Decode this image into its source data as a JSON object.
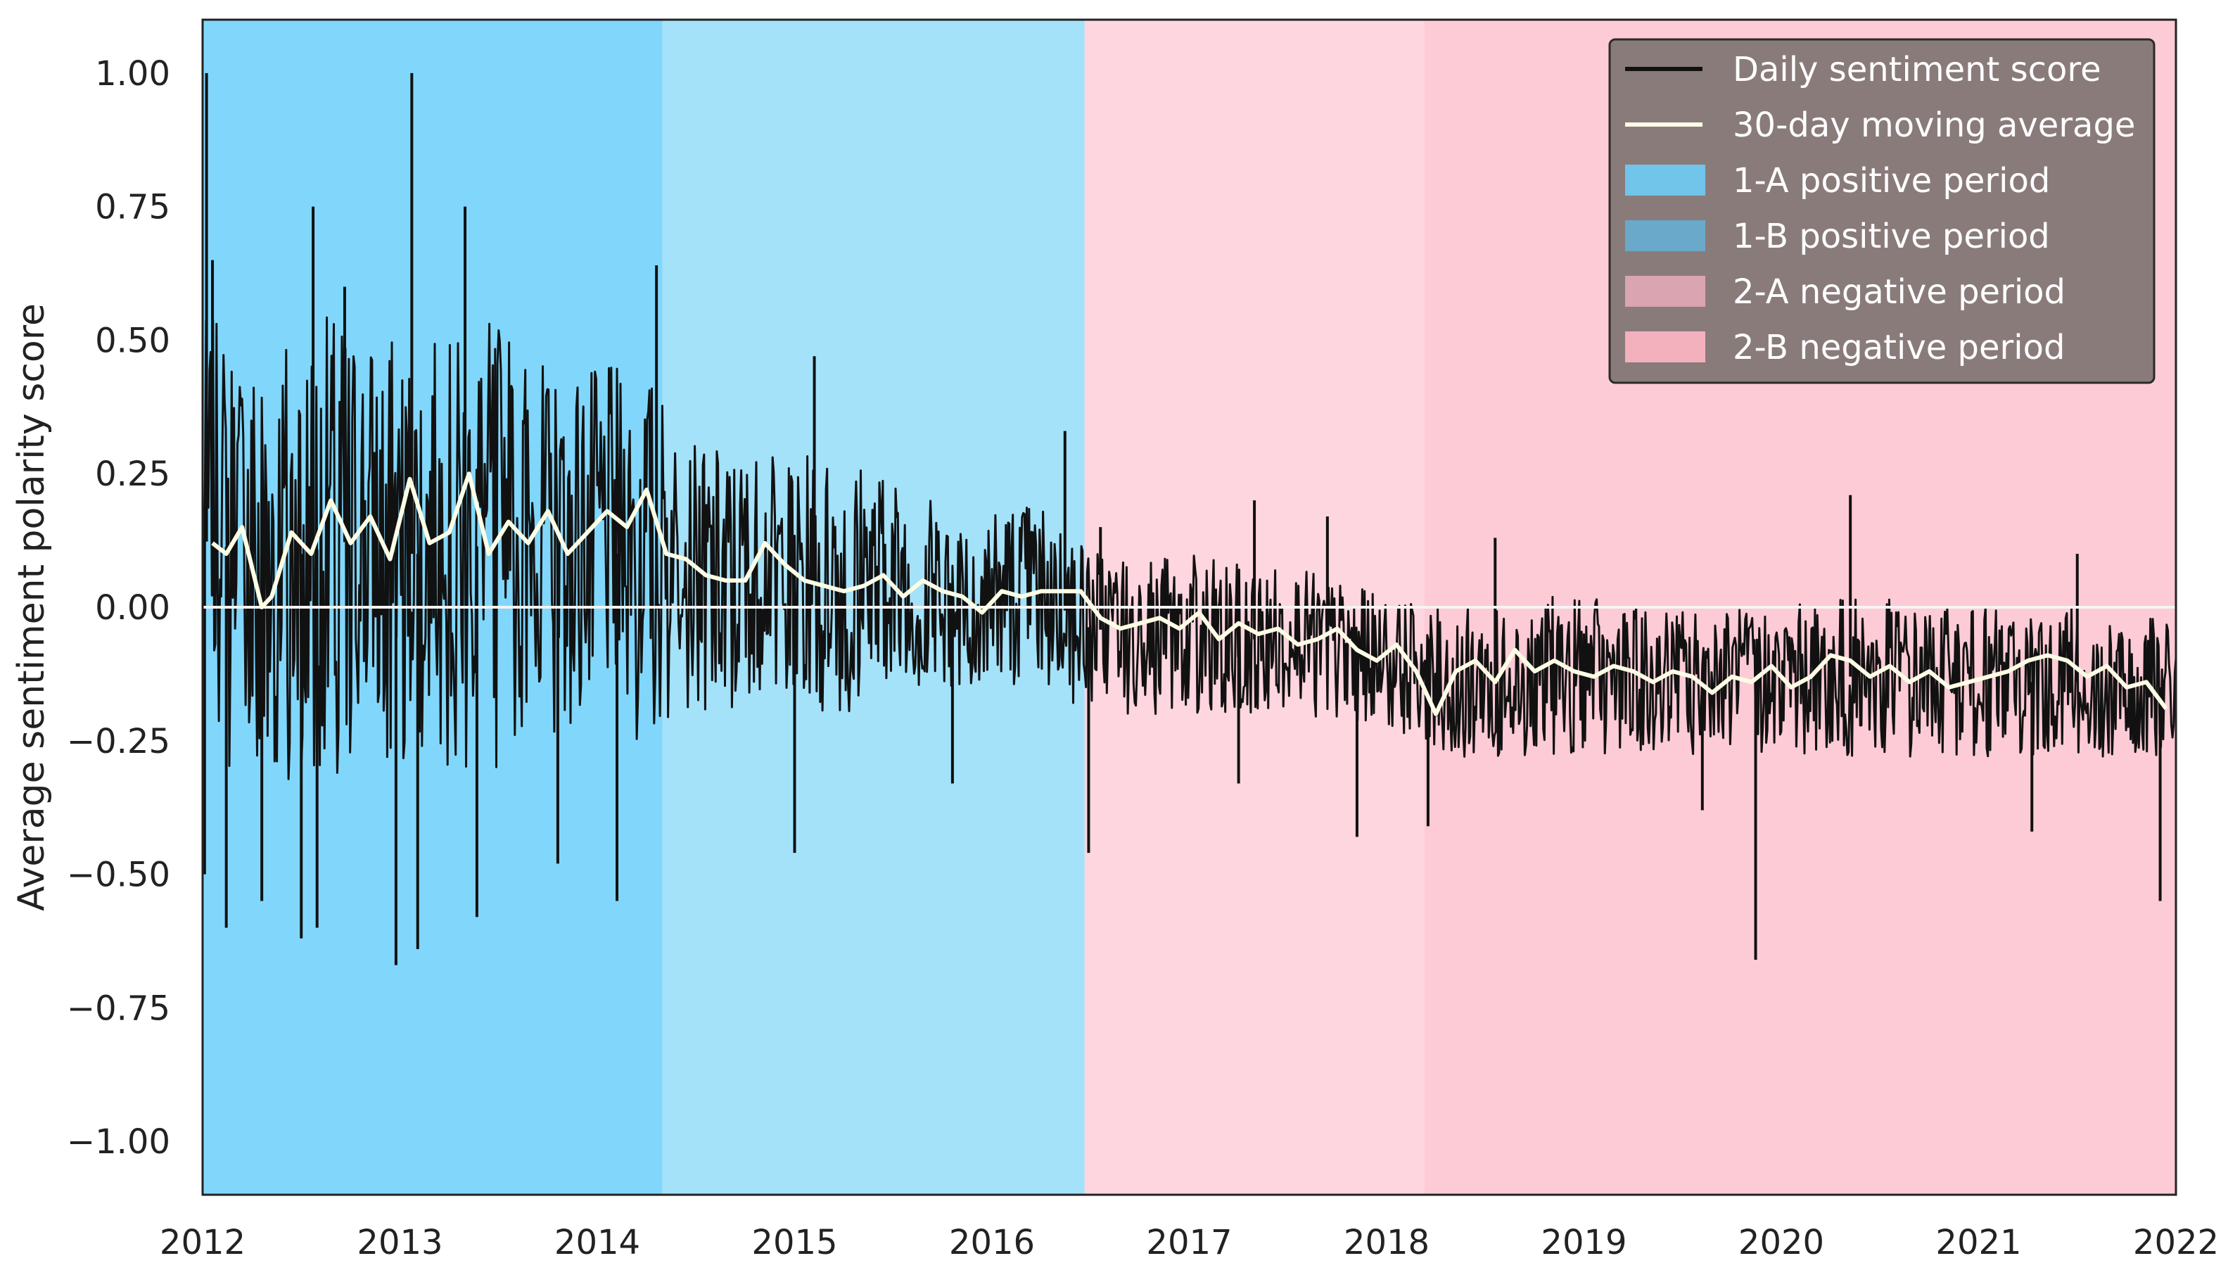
{
  "chart_data": {
    "type": "line",
    "title": "",
    "xlabel": "",
    "ylabel": "Average sentiment polarity score",
    "xlim": [
      2012.0,
      2022.0
    ],
    "ylim": [
      -1.1,
      1.1
    ],
    "x_ticks": [
      2012,
      2013,
      2014,
      2015,
      2016,
      2017,
      2018,
      2019,
      2020,
      2021,
      2022
    ],
    "x_tick_labels": [
      "2012",
      "2013",
      "2014",
      "2015",
      "2016",
      "2017",
      "2018",
      "2019",
      "2020",
      "2021",
      "2022"
    ],
    "y_ticks": [
      1.0,
      0.75,
      0.5,
      0.25,
      0.0,
      -0.25,
      -0.5,
      -0.75,
      -1.0
    ],
    "y_tick_labels": [
      "1.00",
      "0.75",
      "0.50",
      "0.25",
      "0.00",
      "−0.25",
      "−0.50",
      "−0.75",
      "−1.00"
    ],
    "grid": false,
    "zero_line": 0.0,
    "legend": {
      "placement": "top-right",
      "background": "#8a7b7b",
      "entries": [
        {
          "label": "Daily sentiment score",
          "kind": "line",
          "color": "#111111"
        },
        {
          "label": "30-day moving average",
          "kind": "line",
          "color": "#fdfde6"
        },
        {
          "label": "1-A positive period",
          "kind": "patch",
          "color": "#72c5ea"
        },
        {
          "label": "1-B positive period",
          "kind": "patch",
          "color": "#6aa9c9"
        },
        {
          "label": "2-A negative period",
          "kind": "patch",
          "color": "#dba4b1"
        },
        {
          "label": "2-B negative period",
          "kind": "patch",
          "color": "#f3b1bd"
        }
      ]
    },
    "periods": [
      {
        "start": 2012.0,
        "end": 2014.33,
        "color": "#81d7fb"
      },
      {
        "start": 2014.33,
        "end": 2016.47,
        "color": "#a4e2fa"
      },
      {
        "start": 2016.47,
        "end": 2018.19,
        "color": "#fdd6df"
      },
      {
        "start": 2018.19,
        "end": 2022.0,
        "color": "#fdcbd6"
      }
    ],
    "series": [
      {
        "name": "Daily sentiment score",
        "color": "#111111",
        "envelope": {
          "x": [
            2012.0,
            2012.25,
            2012.5,
            2012.75,
            2013.0,
            2013.25,
            2013.5,
            2013.75,
            2014.0,
            2014.25,
            2014.5,
            2014.75,
            2015.0,
            2015.25,
            2015.5,
            2015.75,
            2016.0,
            2016.25,
            2016.5,
            2016.75,
            2017.0,
            2017.25,
            2017.5,
            2017.75,
            2018.0,
            2018.25,
            2018.5,
            2018.75,
            2019.0,
            2019.25,
            2019.5,
            2019.75,
            2020.0,
            2020.25,
            2020.5,
            2020.75,
            2021.0,
            2021.25,
            2021.5,
            2021.75,
            2022.0
          ],
          "upper": [
            0.55,
            0.5,
            0.55,
            0.55,
            0.5,
            0.5,
            0.55,
            0.45,
            0.45,
            0.45,
            0.3,
            0.3,
            0.28,
            0.3,
            0.25,
            0.2,
            0.2,
            0.2,
            0.12,
            0.1,
            0.1,
            0.08,
            0.08,
            0.05,
            0.02,
            0.0,
            0.0,
            0.02,
            0.02,
            0.0,
            0.0,
            0.0,
            0.0,
            0.02,
            0.02,
            0.0,
            0.0,
            0.0,
            0.0,
            -0.02,
            -0.02
          ],
          "lower": [
            -0.3,
            -0.3,
            -0.35,
            -0.3,
            -0.3,
            -0.3,
            -0.3,
            -0.25,
            -0.25,
            -0.25,
            -0.2,
            -0.2,
            -0.2,
            -0.2,
            -0.15,
            -0.15,
            -0.15,
            -0.15,
            -0.2,
            -0.2,
            -0.2,
            -0.2,
            -0.2,
            -0.22,
            -0.22,
            -0.28,
            -0.28,
            -0.28,
            -0.28,
            -0.28,
            -0.28,
            -0.28,
            -0.28,
            -0.28,
            -0.28,
            -0.28,
            -0.28,
            -0.28,
            -0.28,
            -0.28,
            -0.28
          ]
        },
        "spikes": [
          {
            "x": 2012.02,
            "y": 1.0
          },
          {
            "x": 2012.01,
            "y": -0.5
          },
          {
            "x": 2012.05,
            "y": 0.65
          },
          {
            "x": 2012.12,
            "y": -0.6
          },
          {
            "x": 2012.3,
            "y": -0.55
          },
          {
            "x": 2012.5,
            "y": -0.62
          },
          {
            "x": 2012.56,
            "y": 0.75
          },
          {
            "x": 2012.58,
            "y": -0.6
          },
          {
            "x": 2012.72,
            "y": 0.6
          },
          {
            "x": 2012.98,
            "y": -0.67
          },
          {
            "x": 2013.06,
            "y": 1.0
          },
          {
            "x": 2013.09,
            "y": -0.64
          },
          {
            "x": 2013.33,
            "y": 0.75
          },
          {
            "x": 2013.39,
            "y": -0.58
          },
          {
            "x": 2013.8,
            "y": -0.48
          },
          {
            "x": 2014.1,
            "y": -0.55
          },
          {
            "x": 2014.3,
            "y": 0.64
          },
          {
            "x": 2015.0,
            "y": -0.46
          },
          {
            "x": 2015.1,
            "y": 0.47
          },
          {
            "x": 2015.8,
            "y": -0.33
          },
          {
            "x": 2016.37,
            "y": 0.33
          },
          {
            "x": 2016.49,
            "y": -0.46
          },
          {
            "x": 2016.55,
            "y": 0.15
          },
          {
            "x": 2017.25,
            "y": -0.33
          },
          {
            "x": 2017.33,
            "y": 0.2
          },
          {
            "x": 2017.7,
            "y": 0.17
          },
          {
            "x": 2017.85,
            "y": -0.43
          },
          {
            "x": 2018.21,
            "y": -0.41
          },
          {
            "x": 2018.55,
            "y": 0.13
          },
          {
            "x": 2019.6,
            "y": -0.38
          },
          {
            "x": 2019.87,
            "y": -0.66
          },
          {
            "x": 2020.35,
            "y": 0.21
          },
          {
            "x": 2021.27,
            "y": -0.42
          },
          {
            "x": 2021.5,
            "y": 0.1
          },
          {
            "x": 2021.92,
            "y": -0.55
          }
        ]
      },
      {
        "name": "30-day moving average",
        "color": "#fdfde6",
        "x": [
          2012.05,
          2012.12,
          2012.2,
          2012.3,
          2012.35,
          2012.45,
          2012.55,
          2012.65,
          2012.75,
          2012.85,
          2012.95,
          2013.05,
          2013.15,
          2013.25,
          2013.35,
          2013.45,
          2013.55,
          2013.65,
          2013.75,
          2013.85,
          2013.95,
          2014.05,
          2014.15,
          2014.25,
          2014.35,
          2014.45,
          2014.55,
          2014.65,
          2014.75,
          2014.85,
          2014.95,
          2015.05,
          2015.15,
          2015.25,
          2015.35,
          2015.45,
          2015.55,
          2015.65,
          2015.75,
          2015.85,
          2015.95,
          2016.05,
          2016.15,
          2016.25,
          2016.35,
          2016.45,
          2016.55,
          2016.65,
          2016.75,
          2016.85,
          2016.95,
          2017.05,
          2017.15,
          2017.25,
          2017.35,
          2017.45,
          2017.55,
          2017.65,
          2017.75,
          2017.85,
          2017.95,
          2018.05,
          2018.15,
          2018.25,
          2018.35,
          2018.45,
          2018.55,
          2018.65,
          2018.75,
          2018.85,
          2018.95,
          2019.05,
          2019.15,
          2019.25,
          2019.35,
          2019.45,
          2019.55,
          2019.65,
          2019.75,
          2019.85,
          2019.95,
          2020.05,
          2020.15,
          2020.25,
          2020.35,
          2020.45,
          2020.55,
          2020.65,
          2020.75,
          2020.85,
          2020.95,
          2021.05,
          2021.15,
          2021.25,
          2021.35,
          2021.45,
          2021.55,
          2021.65,
          2021.75,
          2021.85,
          2021.95
        ],
        "values": [
          0.12,
          0.1,
          0.15,
          0.0,
          0.02,
          0.14,
          0.1,
          0.2,
          0.12,
          0.17,
          0.09,
          0.24,
          0.12,
          0.14,
          0.25,
          0.1,
          0.16,
          0.12,
          0.18,
          0.1,
          0.14,
          0.18,
          0.15,
          0.22,
          0.1,
          0.09,
          0.06,
          0.05,
          0.05,
          0.12,
          0.08,
          0.05,
          0.04,
          0.03,
          0.04,
          0.06,
          0.02,
          0.05,
          0.03,
          0.02,
          -0.01,
          0.03,
          0.02,
          0.03,
          0.03,
          0.03,
          -0.02,
          -0.04,
          -0.03,
          -0.02,
          -0.04,
          -0.01,
          -0.06,
          -0.03,
          -0.05,
          -0.04,
          -0.07,
          -0.06,
          -0.04,
          -0.08,
          -0.1,
          -0.07,
          -0.12,
          -0.2,
          -0.12,
          -0.1,
          -0.14,
          -0.08,
          -0.12,
          -0.1,
          -0.12,
          -0.13,
          -0.11,
          -0.12,
          -0.14,
          -0.12,
          -0.13,
          -0.16,
          -0.13,
          -0.14,
          -0.11,
          -0.15,
          -0.13,
          -0.09,
          -0.1,
          -0.13,
          -0.11,
          -0.14,
          -0.12,
          -0.15,
          -0.14,
          -0.13,
          -0.12,
          -0.1,
          -0.09,
          -0.1,
          -0.13,
          -0.11,
          -0.15,
          -0.14,
          -0.19
        ]
      }
    ]
  }
}
